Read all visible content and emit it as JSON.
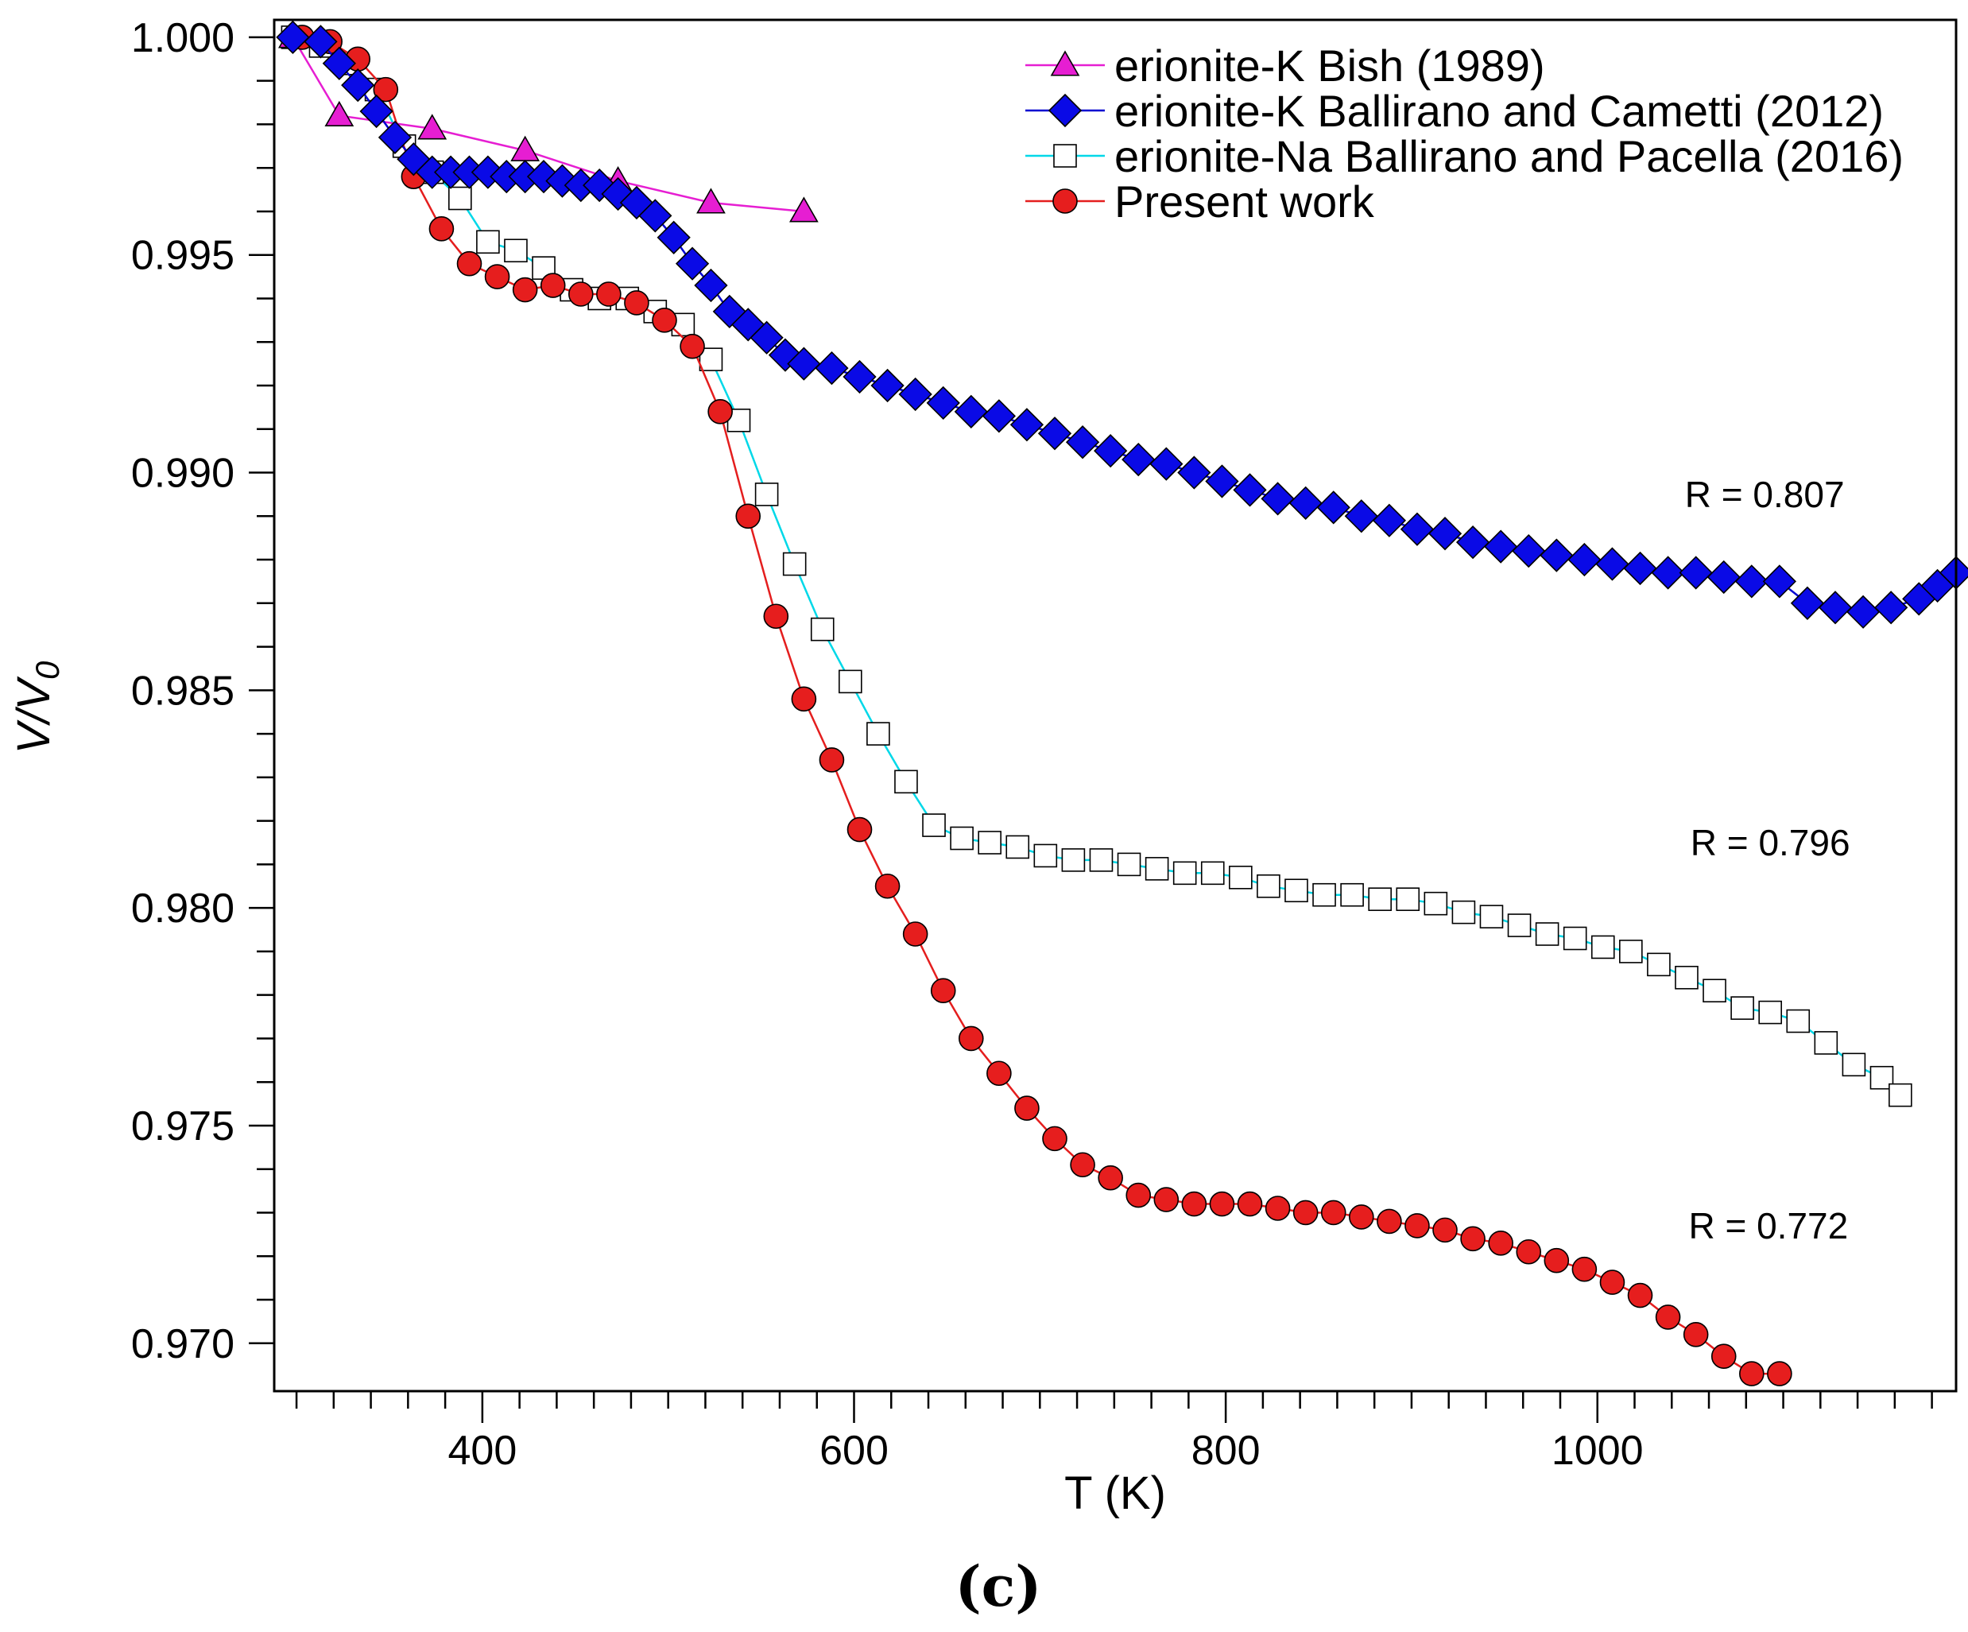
{
  "chart_data": {
    "type": "line",
    "title": "",
    "panel_label": "(c)",
    "xlabel": "T (K)",
    "ylabel_main": "V/V",
    "ylabel_sub": "0",
    "xlim": [
      288,
      1193
    ],
    "ylim": [
      0.9689,
      1.0004
    ],
    "x_ticks": [
      400,
      600,
      800,
      1000
    ],
    "x_tick_labels": [
      "400",
      "600",
      "800",
      "1000"
    ],
    "y_ticks": [
      0.97,
      0.975,
      0.98,
      0.985,
      0.99,
      0.995,
      1.0
    ],
    "y_tick_labels": [
      "0.970",
      "0.975",
      "0.980",
      "0.985",
      "0.990",
      "0.995",
      "1.000"
    ],
    "legend_position": "top-right",
    "series": [
      {
        "name": "erionite-K Bish (1989)",
        "color": "#e61ed2",
        "marker": "triangle",
        "marker_fill": "#e61ed2",
        "x": [
          298,
          323,
          373,
          423,
          473,
          523,
          573
        ],
        "y": [
          1.0,
          0.9982,
          0.9979,
          0.9974,
          0.9967,
          0.9962,
          0.996
        ]
      },
      {
        "name": "erionite-K Ballirano and Cametti (2012)",
        "color": "#0000d0",
        "marker": "diamond",
        "marker_fill": "#0a0ae6",
        "x": [
          298,
          313,
          323,
          333,
          343,
          353,
          363,
          373,
          383,
          393,
          403,
          413,
          423,
          433,
          443,
          453,
          463,
          473,
          483,
          493,
          503,
          513,
          523,
          533,
          543,
          553,
          563,
          573,
          588,
          603,
          618,
          633,
          648,
          663,
          678,
          693,
          708,
          723,
          738,
          753,
          768,
          783,
          798,
          813,
          828,
          843,
          858,
          873,
          888,
          903,
          918,
          933,
          948,
          963,
          978,
          993,
          1008,
          1023,
          1038,
          1053,
          1068,
          1083,
          1098,
          1113,
          1128,
          1143,
          1158,
          1173,
          1183,
          1193
        ],
        "y": [
          1.0,
          0.9999,
          0.9994,
          0.9989,
          0.9983,
          0.9977,
          0.9972,
          0.9969,
          0.9969,
          0.9969,
          0.9969,
          0.9968,
          0.9968,
          0.9968,
          0.9967,
          0.9966,
          0.9966,
          0.9964,
          0.9962,
          0.9959,
          0.9954,
          0.9948,
          0.9943,
          0.9937,
          0.9934,
          0.9931,
          0.9927,
          0.9925,
          0.9924,
          0.9922,
          0.992,
          0.9918,
          0.9916,
          0.9914,
          0.9913,
          0.9911,
          0.9909,
          0.9907,
          0.9905,
          0.9903,
          0.9902,
          0.99,
          0.9898,
          0.9896,
          0.9894,
          0.9893,
          0.9892,
          0.989,
          0.9889,
          0.9887,
          0.9886,
          0.9884,
          0.9883,
          0.9882,
          0.9881,
          0.988,
          0.9879,
          0.9878,
          0.9877,
          0.9877,
          0.9876,
          0.9875,
          0.9875,
          0.987,
          0.9869,
          0.9868,
          0.9869,
          0.9871,
          0.9874,
          0.9877
        ]
      },
      {
        "name": "erionite-Na Ballirano and Pacella (2016)",
        "color": "#00d8e8",
        "marker": "square",
        "marker_fill": "#ffffff",
        "x": [
          298,
          313,
          328,
          343,
          358,
          373,
          388,
          403,
          418,
          433,
          448,
          463,
          478,
          493,
          508,
          523,
          538,
          553,
          568,
          583,
          598,
          613,
          628,
          643,
          658,
          673,
          688,
          703,
          718,
          733,
          748,
          763,
          778,
          793,
          808,
          823,
          838,
          853,
          868,
          883,
          898,
          913,
          928,
          943,
          958,
          973,
          988,
          1003,
          1018,
          1033,
          1048,
          1063,
          1078,
          1093,
          1108,
          1123,
          1138,
          1153,
          1163
        ],
        "y": [
          1.0,
          0.9998,
          0.9994,
          0.9988,
          0.9975,
          0.9969,
          0.9963,
          0.9953,
          0.9951,
          0.9947,
          0.9942,
          0.994,
          0.994,
          0.9937,
          0.9934,
          0.9926,
          0.9912,
          0.9895,
          0.9879,
          0.9864,
          0.9852,
          0.984,
          0.9829,
          0.9819,
          0.9816,
          0.9815,
          0.9814,
          0.9812,
          0.9811,
          0.9811,
          0.981,
          0.9809,
          0.9808,
          0.9808,
          0.9807,
          0.9805,
          0.9804,
          0.9803,
          0.9803,
          0.9802,
          0.9802,
          0.9801,
          0.9799,
          0.9798,
          0.9796,
          0.9794,
          0.9793,
          0.9791,
          0.979,
          0.9787,
          0.9784,
          0.9781,
          0.9777,
          0.9776,
          0.9774,
          0.9769,
          0.9764,
          0.9761,
          0.9757
        ]
      },
      {
        "name": "Present work",
        "color": "#e41e1e",
        "marker": "circle",
        "marker_fill": "#e61e1e",
        "x": [
          303,
          318,
          333,
          348,
          363,
          378,
          393,
          408,
          423,
          438,
          453,
          468,
          483,
          498,
          513,
          528,
          543,
          558,
          573,
          588,
          603,
          618,
          633,
          648,
          663,
          678,
          693,
          708,
          723,
          738,
          753,
          768,
          783,
          798,
          813,
          828,
          843,
          858,
          873,
          888,
          903,
          918,
          933,
          948,
          963,
          978,
          993,
          1008,
          1023,
          1038,
          1053,
          1068,
          1083,
          1098
        ],
        "y": [
          1.0,
          0.9999,
          0.9995,
          0.9988,
          0.9968,
          0.9956,
          0.9948,
          0.9945,
          0.9942,
          0.9943,
          0.9941,
          0.9941,
          0.9939,
          0.9935,
          0.9929,
          0.9914,
          0.989,
          0.9867,
          0.9848,
          0.9834,
          0.9818,
          0.9805,
          0.9794,
          0.9781,
          0.977,
          0.9762,
          0.9754,
          0.9747,
          0.9741,
          0.9738,
          0.9734,
          0.9733,
          0.9732,
          0.9732,
          0.9732,
          0.9731,
          0.973,
          0.973,
          0.9729,
          0.9728,
          0.9727,
          0.9726,
          0.9724,
          0.9723,
          0.9721,
          0.9719,
          0.9717,
          0.9714,
          0.9711,
          0.9706,
          0.9702,
          0.9697,
          0.9693,
          0.9693
        ]
      }
    ],
    "annotations": [
      {
        "text": "R = 0.807",
        "x": 1090,
        "y": 0.9895
      },
      {
        "text": "R = 0.796",
        "x": 1093,
        "y": 0.9815
      },
      {
        "text": "R = 0.772",
        "x": 1092,
        "y": 0.9727
      }
    ]
  }
}
